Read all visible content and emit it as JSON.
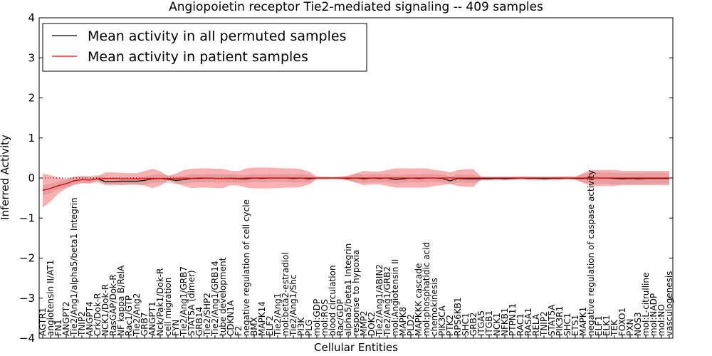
{
  "chart_data": {
    "type": "line",
    "title": "Angiopoietin receptor Tie2-mediated signaling -- 409 samples",
    "xlabel": "Cellular Entities",
    "ylabel": "Inferred Activity",
    "ylim": [
      -4,
      4
    ],
    "yticks": [
      -4,
      -3,
      -2,
      -1,
      0,
      1,
      2,
      3,
      4
    ],
    "grid": false,
    "legend_position": "top-left",
    "categories": [
      "AGTR1",
      "angiotensin II/AT1",
      "FN1",
      "ANGPT2",
      "Tie2/Ang1/alpha5/beta1 Integrin",
      "TNIP2",
      "ANGPT4",
      "Crk/Dok-R",
      "NCK1/Dok-R",
      "RasGAP/Dok-R",
      "NF kappa B/RelA",
      "Rac1/GTP",
      "Tie2/Ang2",
      "GRB7",
      "ANGPT1",
      "Nck/Pak1/Dok-R",
      "cell migration",
      "FYN",
      "Tie2/Ang1/GRB7",
      "STAT5A (dimer)",
      "GRB14",
      "Tie2/SHP2",
      "Tie2/Ang1/GRB14",
      "tube development",
      "CDKN1A",
      "F2",
      "negative regulation of cell cycle",
      "BMX",
      "MAPK14",
      "ELF2",
      "Tie2/Ang1",
      "mol:beta2-estradiol",
      "Tie2/Ang1/Shc",
      "PI3K",
      "PLG",
      "mol:GDP",
      "mol:ROS",
      "blood circulation",
      "Rac/GDP",
      "alpha5/beta1 Integrin",
      "response to hypoxia",
      "MMP2",
      "DOK2",
      "Tie2/Ang1/ABIN2",
      "Tie2/Ang1/GRB2",
      "mol:Angiotensin II",
      "MAPK8",
      "PLD2",
      "MAPKKK cascade",
      "mol:phosphatidic acid",
      "chemokinesis",
      "PIK3CA",
      "PTK2",
      "RPS6KB1",
      "SHC1",
      "GRB2",
      "ITGA5",
      "ITGB1",
      "NCK1",
      "NFKB1",
      "PTPN11",
      "RAC1",
      "RASA1",
      "RELA",
      "TNIP2_",
      "STAT5A",
      "PIK3R1",
      "SHC1_",
      "ETS1",
      "MAPK1",
      "negative regulation of caspase activity",
      "ELF1",
      "ELK1",
      "TEK",
      "FOXO1",
      "PXN",
      "NOS3",
      "mol:L-citrulline",
      "mol:NADP",
      "mol:NO",
      "vasculogenesis"
    ],
    "series": [
      {
        "name": "Mean activity in all permuted samples",
        "color": "#000000",
        "values": [
          -0.31,
          -0.26,
          -0.19,
          -0.14,
          -0.07,
          -0.04,
          -0.05,
          -0.02,
          -0.09,
          -0.09,
          -0.08,
          -0.08,
          -0.08,
          -0.06,
          -0.02,
          -0.01,
          -0.03,
          -0.06,
          -0.04,
          -0.01,
          -0.01,
          0.0,
          -0.01,
          -0.01,
          -0.01,
          -0.02,
          -0.02,
          0.0,
          -0.01,
          0.0,
          0.0,
          0.0,
          -0.01,
          0.0,
          -0.02,
          0.0,
          0.0,
          0.0,
          0.0,
          -0.01,
          0.0,
          -0.02,
          0.0,
          -0.01,
          0.0,
          -0.04,
          -0.02,
          0.0,
          -0.01,
          0.0,
          0.0,
          -0.01,
          -0.07,
          -0.01,
          -0.02,
          -0.02,
          -0.02,
          -0.02,
          -0.01,
          -0.02,
          -0.01,
          0.0,
          -0.01,
          -0.01,
          -0.02,
          -0.01,
          -0.01,
          0.0,
          -0.01,
          -0.01,
          0.0,
          0.0,
          0.0,
          -0.01,
          -0.02,
          -0.01,
          -0.02,
          -0.01,
          -0.01,
          -0.01,
          -0.01
        ]
      },
      {
        "name": "Mean activity in patient samples",
        "color": "#ff0000",
        "values": [
          -0.31,
          -0.26,
          -0.19,
          -0.14,
          -0.07,
          -0.04,
          -0.05,
          -0.02,
          -0.01,
          -0.01,
          -0.02,
          -0.02,
          -0.02,
          -0.01,
          -0.01,
          -0.01,
          -0.01,
          -0.01,
          0.0,
          -0.01,
          0.0,
          0.0,
          -0.01,
          -0.01,
          0.0,
          -0.01,
          0.0,
          0.0,
          0.0,
          0.0,
          0.0,
          0.0,
          0.0,
          0.0,
          0.0,
          0.0,
          0.0,
          0.0,
          0.0,
          0.0,
          0.0,
          0.0,
          0.0,
          0.0,
          0.0,
          0.0,
          0.0,
          0.0,
          0.0,
          0.0,
          0.0,
          0.0,
          0.0,
          0.0,
          0.0,
          0.0,
          0.0,
          0.0,
          0.0,
          0.0,
          0.0,
          0.0,
          0.0,
          0.0,
          0.0,
          0.0,
          0.0,
          0.0,
          0.0,
          0.0,
          0.0,
          0.0,
          0.0,
          0.0,
          0.0,
          0.0,
          0.0,
          0.0,
          0.0,
          0.0,
          0.0
        ]
      }
    ],
    "band_halfwidth": [
      0.42,
      0.33,
      0.2,
      0.12,
      0.1,
      0.08,
      0.08,
      0.06,
      0.15,
      0.15,
      0.15,
      0.14,
      0.14,
      0.18,
      0.24,
      0.18,
      0.06,
      0.12,
      0.2,
      0.24,
      0.24,
      0.24,
      0.24,
      0.24,
      0.18,
      0.18,
      0.24,
      0.26,
      0.26,
      0.26,
      0.25,
      0.24,
      0.24,
      0.22,
      0.16,
      0.03,
      0.03,
      0.02,
      0.03,
      0.06,
      0.12,
      0.18,
      0.16,
      0.16,
      0.2,
      0.24,
      0.24,
      0.24,
      0.24,
      0.24,
      0.2,
      0.18,
      0.14,
      0.2,
      0.22,
      0.22,
      0.03,
      0.03,
      0.03,
      0.03,
      0.03,
      0.03,
      0.03,
      0.03,
      0.03,
      0.03,
      0.03,
      0.03,
      0.03,
      0.12,
      0.2,
      0.2,
      0.2,
      0.2,
      0.18,
      0.18,
      0.18,
      0.18,
      0.18,
      0.18,
      0.18
    ],
    "gray_halfwidth": [
      0.12,
      0.12,
      0.1,
      0.1,
      0.1,
      0.1,
      0.1,
      0.1,
      0.1,
      0.1,
      0.1,
      0.1,
      0.1,
      0.1,
      0.1,
      0.1,
      0.1,
      0.1,
      0.1,
      0.1,
      0.1,
      0.1,
      0.1,
      0.1,
      0.1,
      0.1,
      0.1,
      0.1,
      0.1,
      0.1,
      0.1,
      0.1,
      0.1,
      0.1,
      0.1,
      0.03,
      0.03,
      0.03,
      0.04,
      0.06,
      0.1,
      0.1,
      0.1,
      0.1,
      0.1,
      0.1,
      0.1,
      0.1,
      0.1,
      0.1,
      0.1,
      0.1,
      0.1,
      0.1,
      0.1,
      0.1,
      0.05,
      0.05,
      0.05,
      0.05,
      0.05,
      0.05,
      0.05,
      0.05,
      0.05,
      0.05,
      0.05,
      0.05,
      0.05,
      0.1,
      0.14,
      0.14,
      0.14,
      0.14,
      0.14,
      0.14,
      0.14,
      0.14,
      0.14,
      0.14,
      0.14
    ]
  }
}
